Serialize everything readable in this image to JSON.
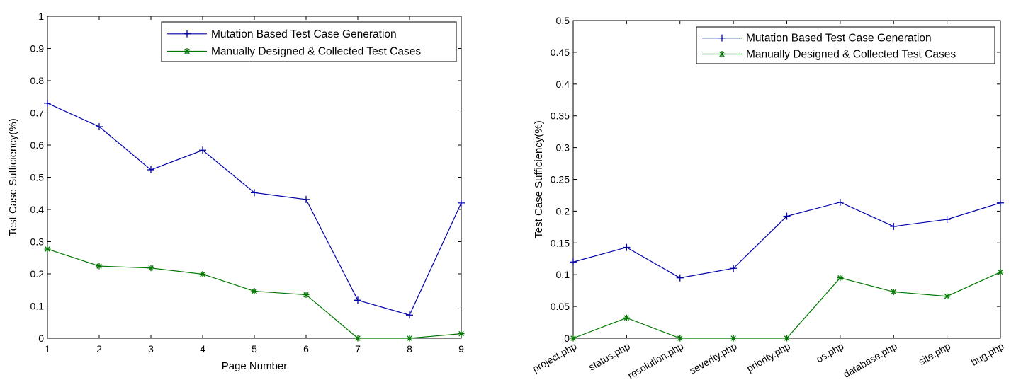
{
  "colors": {
    "mutation": "#0000aa",
    "manual": "#007700",
    "axis": "#000000"
  },
  "chart_data": [
    {
      "type": "line",
      "x": [
        1,
        2,
        3,
        4,
        5,
        6,
        7,
        8,
        9
      ],
      "xlim": [
        1,
        9
      ],
      "ylim": [
        0,
        1
      ],
      "xticks": [
        "1",
        "2",
        "3",
        "4",
        "5",
        "6",
        "7",
        "8",
        "9"
      ],
      "yticks": [
        "0",
        "0.1",
        "0.2",
        "0.3",
        "0.4",
        "0.5",
        "0.6",
        "0.7",
        "0.8",
        "0.9",
        "1"
      ],
      "ytick_values": [
        0,
        0.1,
        0.2,
        0.3,
        0.4,
        0.5,
        0.6,
        0.7,
        0.8,
        0.9,
        1
      ],
      "xlabel": "Page Number",
      "ylabel": "Test Case Sufficiency(%)",
      "grid": false,
      "legend_position": "top-right",
      "series": [
        {
          "name": "Mutation Based Test Case Generation",
          "marker": "+",
          "values": [
            0.73,
            0.657,
            0.523,
            0.584,
            0.452,
            0.431,
            0.118,
            0.072,
            0.42
          ]
        },
        {
          "name": "Manually Designed & Collected Test Cases",
          "marker": "*",
          "values": [
            0.277,
            0.224,
            0.218,
            0.199,
            0.146,
            0.135,
            0.0,
            0.0,
            0.014
          ]
        }
      ]
    },
    {
      "type": "line",
      "categories": [
        "project.php",
        "status.php",
        "resolution.php",
        "severity.php",
        "priority.php",
        "os.php",
        "database.php",
        "site.php",
        "bug.php"
      ],
      "ylim": [
        0,
        0.5
      ],
      "yticks": [
        "0",
        "0.05",
        "0.1",
        "0.15",
        "0.2",
        "0.25",
        "0.3",
        "0.35",
        "0.4",
        "0.45",
        "0.5"
      ],
      "ytick_values": [
        0,
        0.05,
        0.1,
        0.15,
        0.2,
        0.25,
        0.3,
        0.35,
        0.4,
        0.45,
        0.5
      ],
      "xlabel": "",
      "ylabel": "Test Case Sufficiency(%)",
      "grid": false,
      "legend_position": "top-right",
      "series": [
        {
          "name": "Mutation Based Test Case Generation",
          "marker": "+",
          "values": [
            0.12,
            0.143,
            0.095,
            0.11,
            0.192,
            0.214,
            0.176,
            0.187,
            0.213
          ]
        },
        {
          "name": "Manually Designed & Collected Test Cases",
          "marker": "*",
          "values": [
            0.0,
            0.032,
            0.0,
            0.0,
            0.0,
            0.095,
            0.073,
            0.066,
            0.104
          ]
        }
      ]
    }
  ]
}
